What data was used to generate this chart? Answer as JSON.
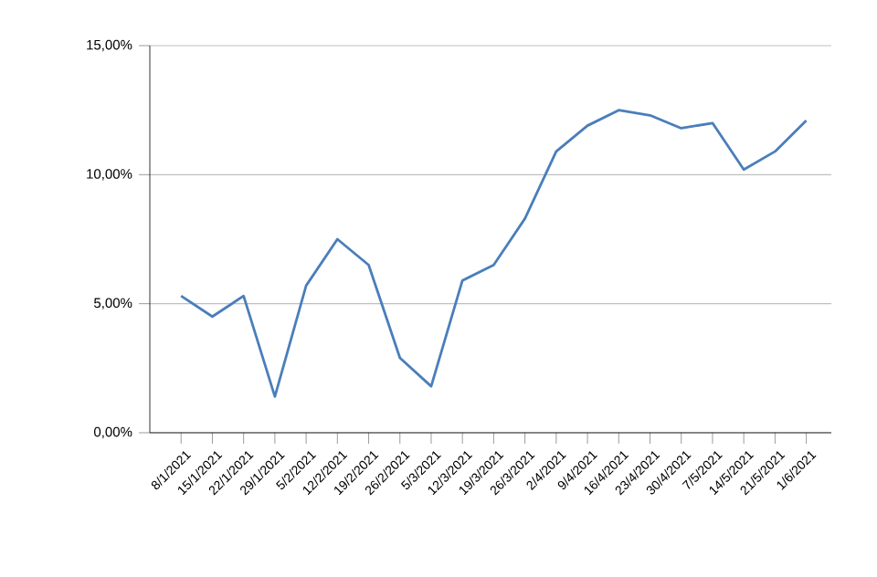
{
  "chart_data": {
    "type": "line",
    "categories": [
      "8/1/2021",
      "15/1/2021",
      "22/1/2021",
      "29/1/2021",
      "5/2/2021",
      "12/2/2021",
      "19/2/2021",
      "26/2/2021",
      "5/3/2021",
      "12/3/2021",
      "19/3/2021",
      "26/3/2021",
      "2/4/2021",
      "9/4/2021",
      "16/4/2021",
      "23/4/2021",
      "30/4/2021",
      "7/5/2021",
      "14/5/2021",
      "21/5/2021",
      "1/6/2021"
    ],
    "series": [
      {
        "color": "#4a7ebb",
        "values": [
          5.3,
          4.5,
          5.3,
          1.4,
          5.7,
          7.5,
          6.5,
          2.9,
          1.8,
          5.9,
          6.5,
          8.3,
          10.9,
          11.9,
          12.5,
          12.3,
          11.8,
          12.0,
          10.2,
          10.9,
          12.1
        ]
      }
    ],
    "ylim": [
      0,
      15
    ],
    "yticks": [
      {
        "value": 0,
        "label": "0,00%"
      },
      {
        "value": 5,
        "label": "5,00%"
      },
      {
        "value": 10,
        "label": "10,00%"
      },
      {
        "value": 15,
        "label": "15,00%"
      }
    ],
    "grid": "y",
    "marker": "none",
    "line_style": "solid"
  }
}
